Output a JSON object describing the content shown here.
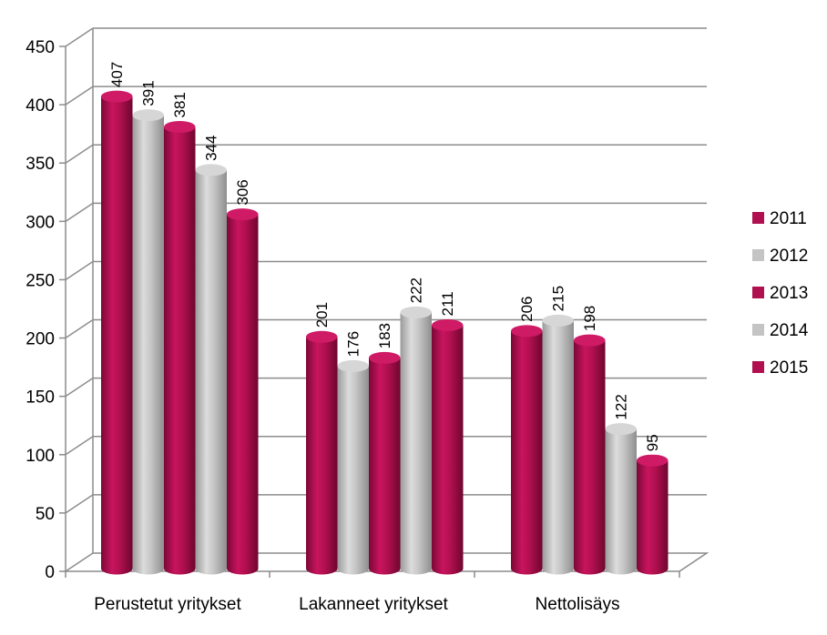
{
  "chart_data": {
    "type": "bar",
    "title": "",
    "xlabel": "",
    "ylabel": "",
    "categories": [
      "Perustetut yritykset",
      "Lakanneet yritykset",
      "Nettolisäys"
    ],
    "series": [
      {
        "name": "2011",
        "values": [
          407,
          201,
          206
        ],
        "color": "#b0104f"
      },
      {
        "name": "2012",
        "values": [
          391,
          176,
          215
        ],
        "color": "#c4c4c4"
      },
      {
        "name": "2013",
        "values": [
          381,
          183,
          198
        ],
        "color": "#b0104f"
      },
      {
        "name": "2014",
        "values": [
          344,
          222,
          122
        ],
        "color": "#c4c4c4"
      },
      {
        "name": "2015",
        "values": [
          306,
          211,
          95
        ],
        "color": "#b0104f"
      }
    ],
    "ylim": [
      0,
      450
    ],
    "yticks": [
      0,
      50,
      100,
      150,
      200,
      250,
      300,
      350,
      400,
      450
    ],
    "grid": true,
    "legend_position": "right"
  }
}
